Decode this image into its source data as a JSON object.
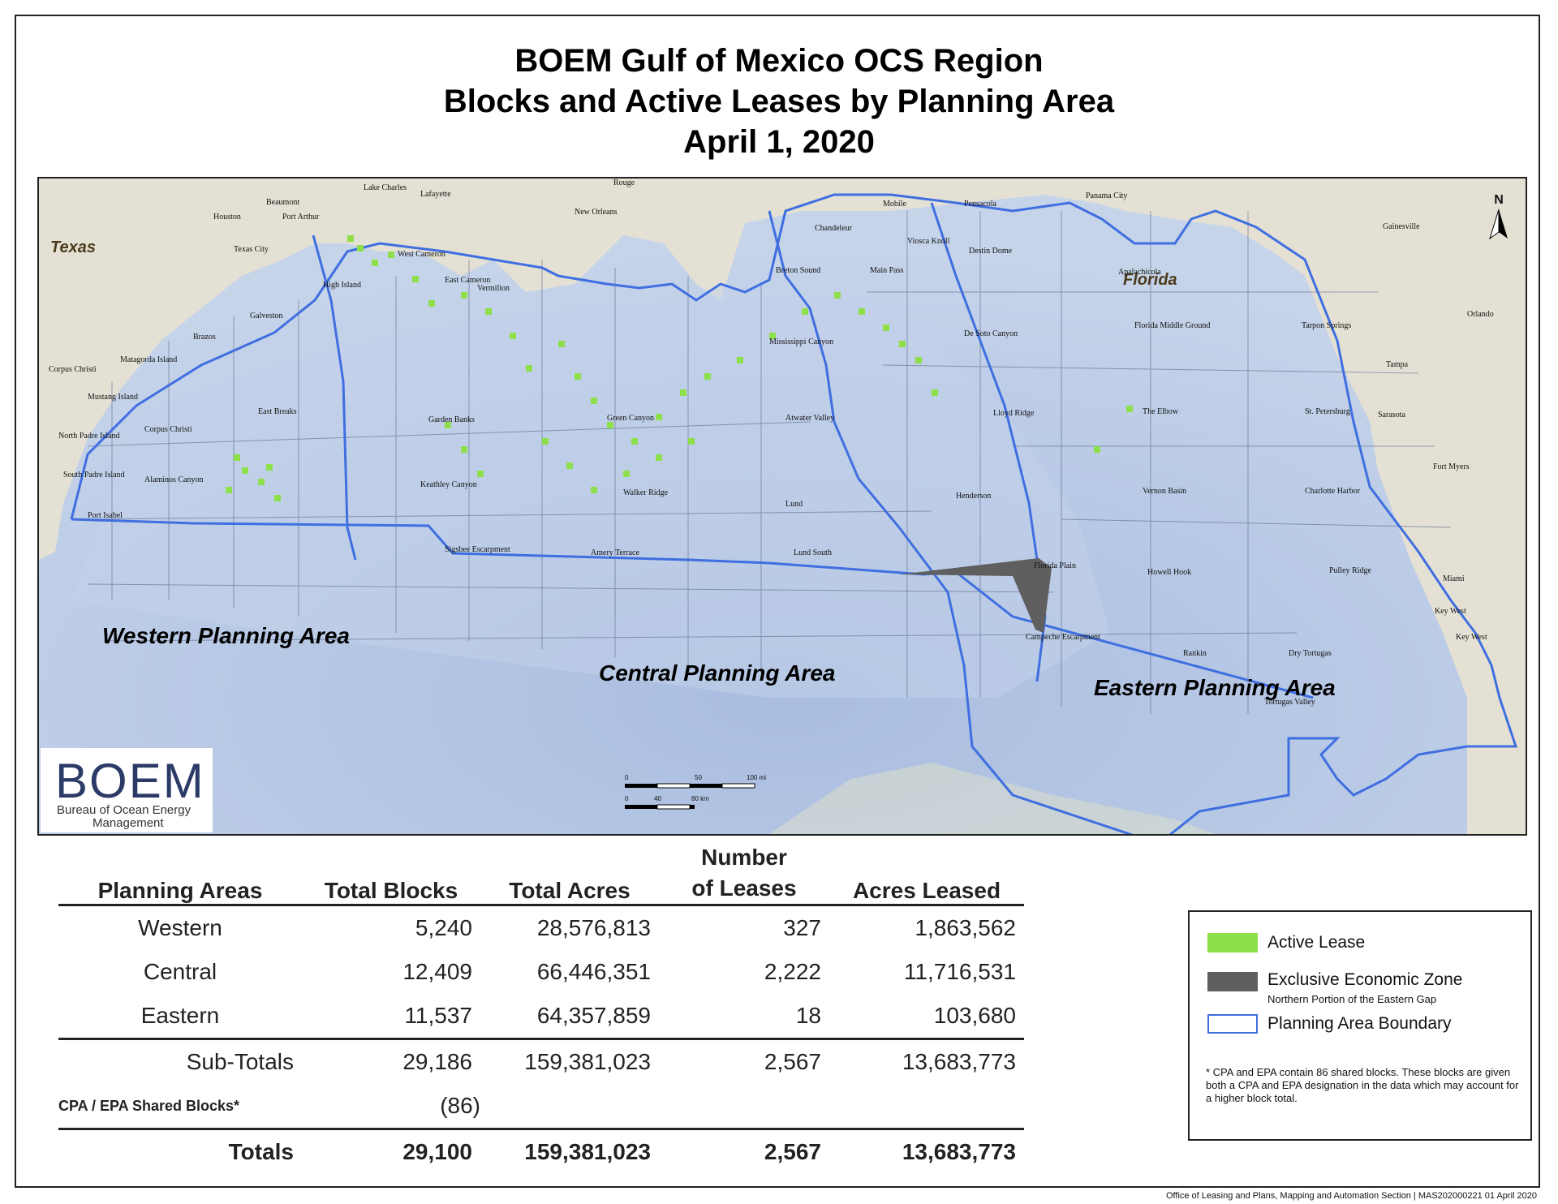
{
  "title": {
    "line1": "BOEM Gulf of Mexico OCS Region",
    "line2": "Blocks and Active Leases by Planning Area",
    "line3": "April 1, 2020"
  },
  "map": {
    "states": [
      "Texas",
      "Florida"
    ],
    "planning_areas": [
      "Western Planning Area",
      "Central Planning Area",
      "Eastern Planning Area"
    ],
    "cities": [
      "Houston",
      "Beaumont",
      "Lake Charles",
      "Lafayette",
      "New Orleans",
      "Texas City",
      "Port Arthur",
      "Corpus Christi",
      "Mobile",
      "Pensacola",
      "Panama City",
      "Gainesville",
      "Orlando",
      "Tampa",
      "Sarasota",
      "Fort Myers",
      "Key West",
      "Rouge"
    ],
    "area_names": [
      "West Cameron",
      "East Cameron",
      "Vermilion",
      "High Island",
      "Galveston",
      "Brazos",
      "Matagorda Island",
      "Mustang Island",
      "North Padre Island",
      "South Padre Island",
      "Port Isabel",
      "Corpus Christi",
      "East Breaks",
      "Alaminos Canyon",
      "Keathley Canyon",
      "Garden Banks",
      "Green Canyon",
      "Walker Ridge",
      "Mississippi Canyon",
      "Atwater Valley",
      "Lund",
      "Lund South",
      "Amery Terrace",
      "Sigsbee Escarpment",
      "Henderson",
      "De Soto Canyon",
      "Lloyd Ridge",
      "Destin Dome",
      "Apalachicola",
      "Florida Middle Ground",
      "The Elbow",
      "Vernon Basin",
      "Howell Hook",
      "Florida Plain",
      "Campeche Escarpment",
      "Rankin",
      "Dry Tortugas",
      "Tortugas Valley",
      "Pulley Ridge",
      "Charlotte Harbor",
      "St. Petersburg",
      "Tarpon Springs",
      "Miami",
      "Key West",
      "Chandeleur",
      "Main Pass",
      "Viosca Knoll",
      "Breton Sound"
    ],
    "north_label": "N",
    "scale_mi": [
      "0",
      "50",
      "100 mi"
    ],
    "scale_km": [
      "0",
      "40",
      "80 km"
    ],
    "colors": {
      "water": "#b7c8e4",
      "land": "#e6e3d8",
      "lease": "#8ee04a",
      "eez": "#5f5f5f",
      "boundary": "#3f6fe0"
    }
  },
  "logo": {
    "name": "BOEM",
    "subtitle_line1": "Bureau of Ocean Energy",
    "subtitle_line2": "Management"
  },
  "table": {
    "headers": {
      "planning_areas": "Planning Areas",
      "total_blocks": "Total Blocks",
      "total_acres": "Total Acres",
      "number_of_leases_line1": "Number",
      "number_of_leases_line2": "of Leases",
      "acres_leased": "Acres Leased"
    },
    "rows": [
      {
        "area": "Western",
        "blocks": "5,240",
        "acres": "28,576,813",
        "leases": "327",
        "acres_leased": "1,863,562"
      },
      {
        "area": "Central",
        "blocks": "12,409",
        "acres": "66,446,351",
        "leases": "2,222",
        "acres_leased": "11,716,531"
      },
      {
        "area": "Eastern",
        "blocks": "11,537",
        "acres": "64,357,859",
        "leases": "18",
        "acres_leased": "103,680"
      }
    ],
    "subtotals": {
      "label": "Sub-Totals",
      "blocks": "29,186",
      "acres": "159,381,023",
      "leases": "2,567",
      "acres_leased": "13,683,773"
    },
    "shared": {
      "label": "CPA / EPA Shared Blocks*",
      "blocks": "(86)"
    },
    "totals": {
      "label": "Totals",
      "blocks": "29,100",
      "acres": "159,381,023",
      "leases": "2,567",
      "acres_leased": "13,683,773"
    }
  },
  "legend": {
    "active_lease": "Active Lease",
    "eez": "Exclusive Economic Zone",
    "eez_sub": "Northern Portion of the Eastern Gap",
    "boundary": "Planning Area Boundary",
    "note": "* CPA and EPA contain 86 shared blocks. These blocks are given both a CPA and EPA designation in the data which may account for a higher block total."
  },
  "footer": "Office of Leasing and Plans, Mapping and Automation Section | MAS202000221 01 April 2020"
}
